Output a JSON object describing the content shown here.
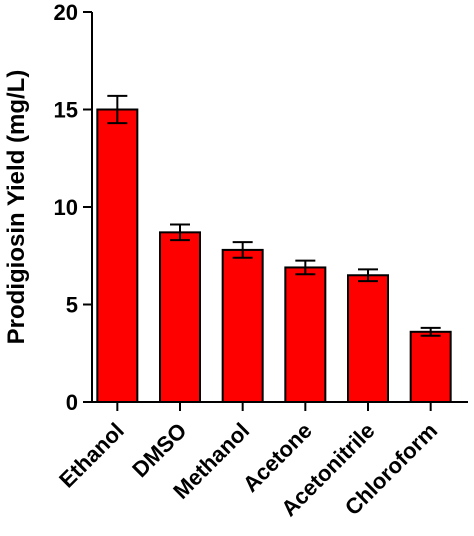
{
  "chart_data": {
    "type": "bar",
    "title": "",
    "xlabel": "",
    "ylabel": "Prodigiosin Yield (mg/L)",
    "ylim": [
      0,
      20
    ],
    "yticks": [
      0,
      5,
      10,
      15,
      20
    ],
    "categories": [
      "Ethanol",
      "DMSO",
      "Methanol",
      "Acetone",
      "Acetonitrile",
      "Chloroform"
    ],
    "values": [
      15.0,
      8.7,
      7.8,
      6.9,
      6.5,
      3.6
    ],
    "error": [
      0.7,
      0.4,
      0.4,
      0.35,
      0.3,
      0.2
    ],
    "grid": false,
    "legend": "none",
    "bar_color": "#ff0000",
    "edge_color": "#000000"
  }
}
